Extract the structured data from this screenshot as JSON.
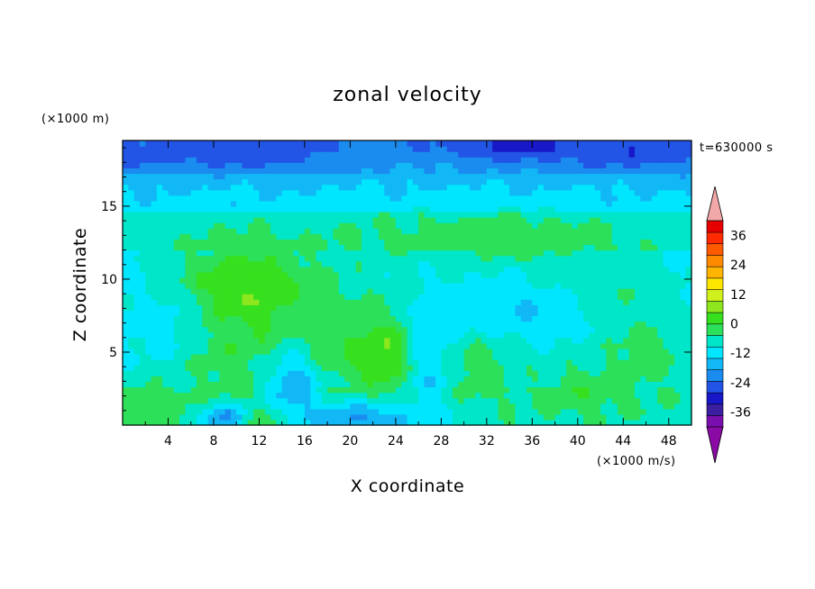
{
  "chart_data": {
    "type": "heatmap",
    "title": "zonal velocity",
    "xlabel": "X coordinate",
    "ylabel": "Z coordinate",
    "x_unit_label": "(×1000 m/s)",
    "y_unit_label": "(×1000 m)",
    "time_label": "t=630000 s",
    "xlim": [
      0,
      50
    ],
    "ylim": [
      0,
      19.5
    ],
    "x_ticks": [
      "4",
      "8",
      "12",
      "16",
      "20",
      "24",
      "28",
      "32",
      "36",
      "40",
      "44",
      "48"
    ],
    "y_ticks": [
      "5",
      "10",
      "15"
    ],
    "colorbar": {
      "range": [
        -42,
        42
      ],
      "step": 6,
      "tick_labels": [
        "36",
        "24",
        "12",
        "0",
        "-12",
        "-24",
        "-36"
      ],
      "extend": "both",
      "colors": [
        "#7a0fb0",
        "#3c1fa0",
        "#1818c8",
        "#2255e6",
        "#1a8cf0",
        "#12b8f5",
        "#00e6ff",
        "#00e6c8",
        "#2de05a",
        "#37e01e",
        "#8ee61e",
        "#d0f01e",
        "#ffe600",
        "#ffb400",
        "#ff8a00",
        "#ff5a00",
        "#ff2a00",
        "#e60000"
      ],
      "over_color": "#f2a8a8",
      "under_color": "#8a0aa6"
    },
    "features": [
      {
        "x": 34,
        "z": 19.2,
        "sx": 4,
        "sz": 0.7,
        "value": -30
      },
      {
        "x": 25,
        "z": 18.2,
        "sx": 40,
        "sz": 1.8,
        "value": -6
      },
      {
        "x": 8,
        "z": 18.8,
        "sx": 10,
        "sz": 1.1,
        "value": -16
      },
      {
        "x": 45,
        "z": 18.8,
        "sx": 8,
        "sz": 1.1,
        "value": -16
      },
      {
        "x": 32,
        "z": 12.8,
        "sx": 9,
        "sz": 1.4,
        "value": 9
      },
      {
        "x": 37,
        "z": 12.6,
        "sx": 4,
        "sz": 0.8,
        "value": 6
      },
      {
        "x": 42,
        "z": 9.2,
        "sx": 5,
        "sz": 1.6,
        "value": 6
      },
      {
        "x": 10,
        "z": 9.2,
        "sx": 3.8,
        "sz": 2.2,
        "value": 18
      },
      {
        "x": 13,
        "z": 8.8,
        "sx": 6,
        "sz": 2.4,
        "value": 10
      },
      {
        "x": 20,
        "z": 7.5,
        "sx": 3,
        "sz": 2.5,
        "value": 4
      },
      {
        "x": 23.5,
        "z": 4.8,
        "sx": 2.4,
        "sz": 1.7,
        "value": 20
      },
      {
        "x": 19,
        "z": 4.8,
        "sx": 3,
        "sz": 1.6,
        "value": 8
      },
      {
        "x": 9,
        "z": 5,
        "sx": 3,
        "sz": 2.8,
        "value": 9
      },
      {
        "x": 15,
        "z": 2.6,
        "sx": 1.6,
        "sz": 1.8,
        "value": -12
      },
      {
        "x": 21,
        "z": 0.5,
        "sx": 3.5,
        "sz": 0.8,
        "value": -14
      },
      {
        "x": 9,
        "z": 0.5,
        "sx": 1.5,
        "sz": 0.7,
        "value": -18
      },
      {
        "x": 27,
        "z": 4.5,
        "sx": 1.6,
        "sz": 2.5,
        "value": -12
      },
      {
        "x": 31,
        "z": 4,
        "sx": 2.5,
        "sz": 1.6,
        "value": 9
      },
      {
        "x": 40,
        "z": 2.5,
        "sx": 3,
        "sz": 1.3,
        "value": 9
      },
      {
        "x": 46,
        "z": 5,
        "sx": 2.5,
        "sz": 1.8,
        "value": 9
      },
      {
        "x": 2.5,
        "z": 1.5,
        "sx": 2.2,
        "sz": 1.5,
        "value": 8
      },
      {
        "x": 12.5,
        "z": 0.3,
        "sx": 1.5,
        "sz": 0.6,
        "value": 8
      },
      {
        "x": 36,
        "z": 8,
        "sx": 4,
        "sz": 1.4,
        "value": -6
      },
      {
        "x": 4,
        "z": 7,
        "sx": 3,
        "sz": 2,
        "value": -5
      }
    ]
  }
}
